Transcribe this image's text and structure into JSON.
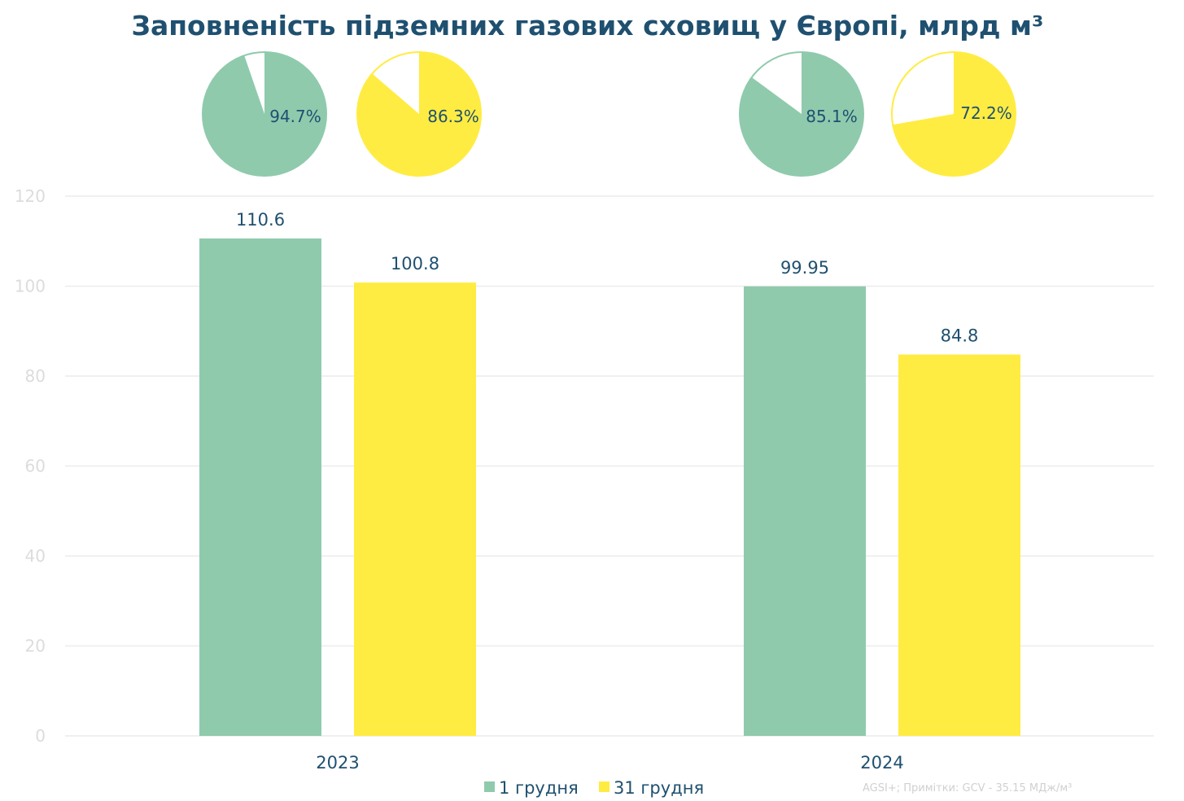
{
  "chart_data": {
    "type": "bar",
    "title": "Заповненість підземних газових сховищ у Європі, млрд м³",
    "categories": [
      "2023",
      "2024"
    ],
    "ylim": [
      0,
      120
    ],
    "yticks": [
      "0",
      "20",
      "40",
      "60",
      "80",
      "100",
      "120"
    ],
    "grid": true,
    "legend_position": "bottom",
    "series": [
      {
        "name": "1 грудня",
        "color": "#8fcaad",
        "values": [
          110.6,
          99.95
        ],
        "labels": [
          "110.6",
          "99.95"
        ]
      },
      {
        "name": "31 грудня",
        "color": "#ffec42",
        "values": [
          100.8,
          84.8
        ],
        "labels": [
          "100.8",
          "84.8"
        ]
      }
    ],
    "pies": [
      {
        "category": "2023",
        "series": "1 грудня",
        "percent": 94.7,
        "label": "94.7%"
      },
      {
        "category": "2023",
        "series": "31 грудня",
        "percent": 86.3,
        "label": "86.3%"
      },
      {
        "category": "2024",
        "series": "1 грудня",
        "percent": 85.1,
        "label": "85.1%"
      },
      {
        "category": "2024",
        "series": "31 грудня",
        "percent": 72.2,
        "label": "72.2%"
      }
    ],
    "source_note": "AGSI+; Примітки: GCV - 35.15 МДж/м³"
  }
}
